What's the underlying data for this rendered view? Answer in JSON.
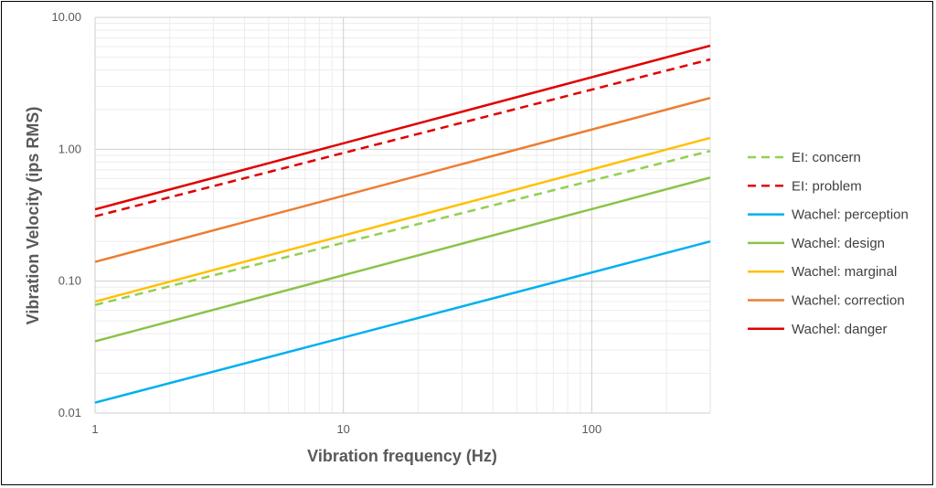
{
  "chart_data": {
    "type": "line",
    "xlabel": "Vibration frequency (Hz)",
    "ylabel": "Vibration Velocity (ips RMS)",
    "x_scale": "log",
    "y_scale": "log",
    "xlim": [
      1,
      300
    ],
    "ylim": [
      0.01,
      10
    ],
    "x_ticks": [
      "1",
      "10",
      "100"
    ],
    "y_ticks": [
      "0.01",
      "0.10",
      "1.00",
      "10.00"
    ],
    "grid": true,
    "legend_position": "right",
    "series": [
      {
        "name": "EI: concern",
        "color": "#92D050",
        "dash": "dashed",
        "points": [
          [
            1,
            0.066
          ],
          [
            300,
            0.97
          ]
        ]
      },
      {
        "name": "EI: problem",
        "color": "#E00000",
        "dash": "dashed",
        "points": [
          [
            1,
            0.31
          ],
          [
            300,
            4.8
          ]
        ]
      },
      {
        "name": "Wachel: perception",
        "color": "#00B0F0",
        "dash": "solid",
        "points": [
          [
            1,
            0.012
          ],
          [
            300,
            0.2
          ]
        ]
      },
      {
        "name": "Wachel: design",
        "color": "#8BC34A",
        "dash": "solid",
        "points": [
          [
            1,
            0.035
          ],
          [
            300,
            0.61
          ]
        ]
      },
      {
        "name": "Wachel: marginal",
        "color": "#FFC000",
        "dash": "solid",
        "points": [
          [
            1,
            0.07
          ],
          [
            300,
            1.22
          ]
        ]
      },
      {
        "name": "Wachel: correction",
        "color": "#ED7D31",
        "dash": "solid",
        "points": [
          [
            1,
            0.14
          ],
          [
            300,
            2.45
          ]
        ]
      },
      {
        "name": "Wachel: danger",
        "color": "#E00000",
        "dash": "solid",
        "points": [
          [
            1,
            0.35
          ],
          [
            300,
            6.1
          ]
        ]
      }
    ]
  }
}
